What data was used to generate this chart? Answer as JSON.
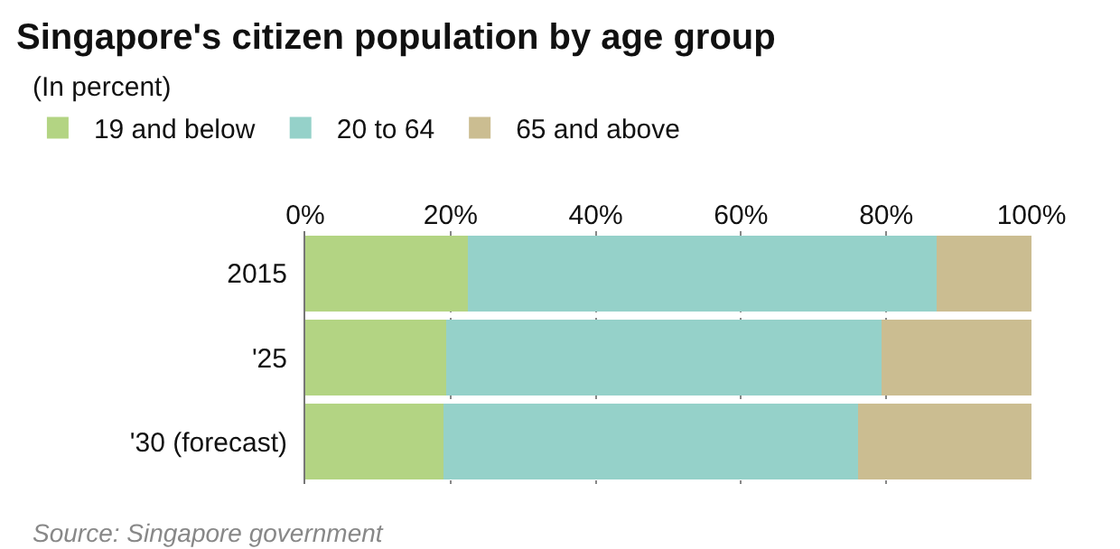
{
  "chart_data": {
    "type": "bar",
    "orientation": "horizontal",
    "stacked": true,
    "title": "Singapore's citizen population by age group",
    "subtitle": "(In percent)",
    "categories": [
      "2015",
      "'25",
      "'30 (forecast)"
    ],
    "series": [
      {
        "name": "19 and below",
        "color": "#b3d483",
        "values": [
          22.4,
          19.4,
          19.0
        ]
      },
      {
        "name": "20 to 64",
        "color": "#95d1c9",
        "values": [
          64.5,
          60.0,
          57.1
        ]
      },
      {
        "name": "65 and above",
        "color": "#cbbd91",
        "values": [
          13.1,
          20.6,
          23.9
        ]
      }
    ],
    "xlim": [
      0,
      100
    ],
    "xticks": [
      {
        "value": 0,
        "label": "0%"
      },
      {
        "value": 20,
        "label": "20%"
      },
      {
        "value": 40,
        "label": "40%"
      },
      {
        "value": 60,
        "label": "60%"
      },
      {
        "value": 80,
        "label": "80%"
      },
      {
        "value": 100,
        "label": "100%"
      }
    ],
    "grid": "x",
    "legend": "top left",
    "annotations": [
      "Source: Singapore government"
    ]
  }
}
